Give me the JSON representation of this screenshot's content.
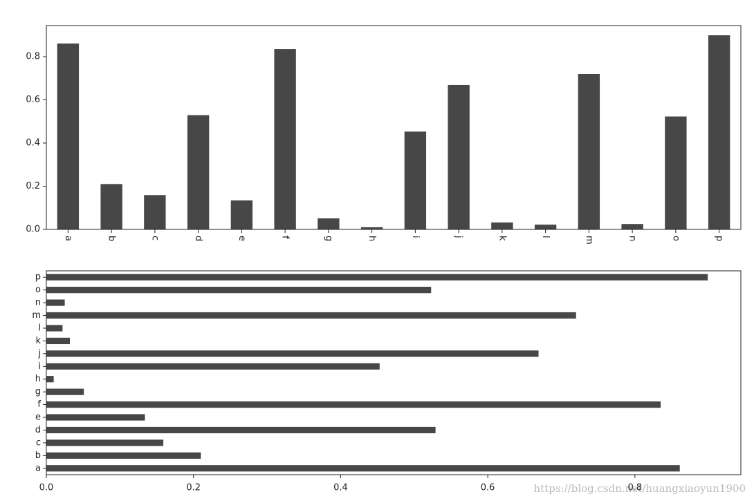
{
  "chart_data": [
    {
      "type": "bar",
      "categories": [
        "a",
        "b",
        "c",
        "d",
        "e",
        "f",
        "g",
        "h",
        "i",
        "j",
        "k",
        "l",
        "m",
        "n",
        "o",
        "p"
      ],
      "values": [
        0.861,
        0.21,
        0.159,
        0.529,
        0.134,
        0.835,
        0.051,
        0.01,
        0.453,
        0.669,
        0.032,
        0.022,
        0.72,
        0.025,
        0.523,
        0.899
      ],
      "color": "#474747",
      "ylim": [
        0,
        0.944
      ],
      "yticks": [
        {
          "value": 0,
          "label": "0.0"
        },
        {
          "value": 0.2,
          "label": "0.2"
        },
        {
          "value": 0.4,
          "label": "0.4"
        },
        {
          "value": 0.6,
          "label": "0.6"
        },
        {
          "value": 0.8,
          "label": "0.8"
        }
      ]
    },
    {
      "type": "barh",
      "categories": [
        "a",
        "b",
        "c",
        "d",
        "e",
        "f",
        "g",
        "h",
        "i",
        "j",
        "k",
        "l",
        "m",
        "n",
        "o",
        "p"
      ],
      "values": [
        0.861,
        0.21,
        0.159,
        0.529,
        0.134,
        0.835,
        0.051,
        0.01,
        0.453,
        0.669,
        0.032,
        0.022,
        0.72,
        0.025,
        0.523,
        0.899
      ],
      "color": "#474747",
      "xlim": [
        0,
        0.944
      ],
      "xticks": [
        {
          "value": 0,
          "label": "0.0"
        },
        {
          "value": 0.2,
          "label": "0.2"
        },
        {
          "value": 0.4,
          "label": "0.4"
        },
        {
          "value": 0.6,
          "label": "0.6"
        },
        {
          "value": 0.8,
          "label": "0.8"
        }
      ]
    }
  ],
  "watermark": "https://blog.csdn.net/huangxiaoyun1900"
}
